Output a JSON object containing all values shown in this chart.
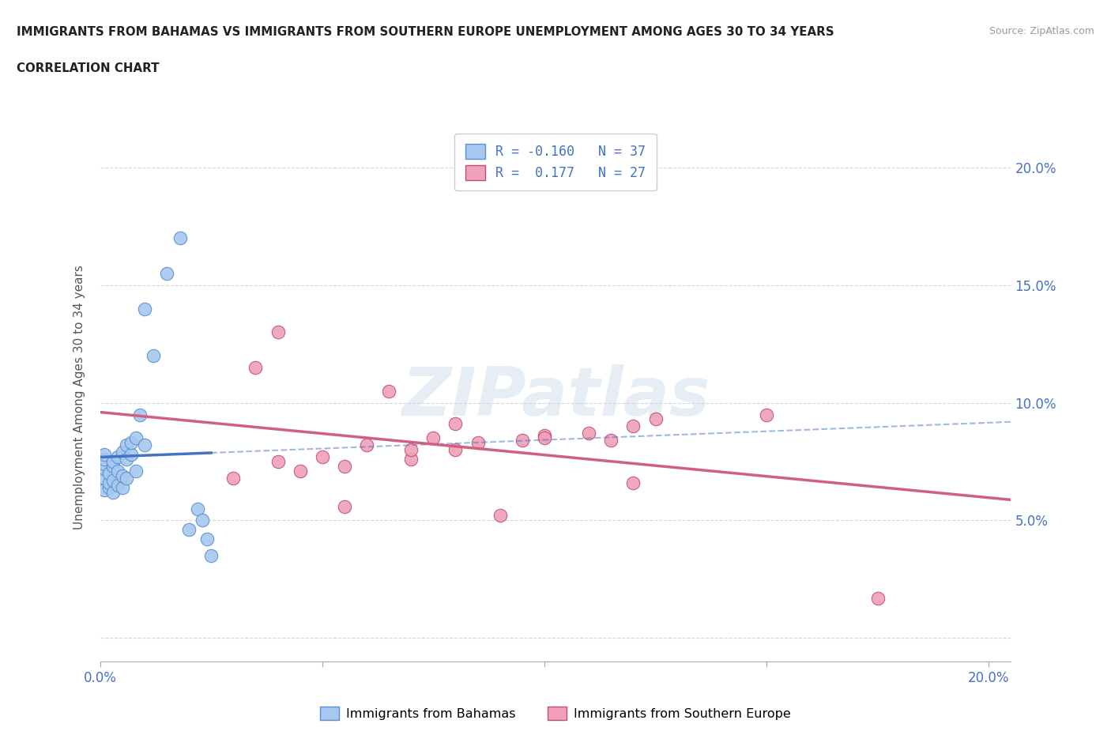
{
  "title_line1": "IMMIGRANTS FROM BAHAMAS VS IMMIGRANTS FROM SOUTHERN EUROPE UNEMPLOYMENT AMONG AGES 30 TO 34 YEARS",
  "title_line2": "CORRELATION CHART",
  "source_text": "Source: ZipAtlas.com",
  "ylabel": "Unemployment Among Ages 30 to 34 years",
  "xlim": [
    0.0,
    0.205
  ],
  "ylim": [
    -0.01,
    0.215
  ],
  "legend_r1": "R = -0.160   N = 37",
  "legend_r2": "R =  0.177   N = 27",
  "color_bahamas": "#a8c8f0",
  "color_bahamas_edge": "#5590d0",
  "color_s_europe": "#f0a0b8",
  "color_s_europe_edge": "#c05070",
  "color_bahamas_line": "#4472c4",
  "color_s_europe_line": "#d06080",
  "watermark": "ZIPatlas",
  "bahamas_x": [
    0.001,
    0.001,
    0.001,
    0.001,
    0.001,
    0.001,
    0.002,
    0.002,
    0.002,
    0.003,
    0.003,
    0.003,
    0.003,
    0.004,
    0.004,
    0.004,
    0.005,
    0.005,
    0.005,
    0.006,
    0.006,
    0.006,
    0.007,
    0.007,
    0.008,
    0.008,
    0.009,
    0.01,
    0.01,
    0.012,
    0.015,
    0.018,
    0.02,
    0.022,
    0.023,
    0.024,
    0.025
  ],
  "bahamas_y": [
    0.063,
    0.068,
    0.072,
    0.074,
    0.076,
    0.078,
    0.064,
    0.066,
    0.07,
    0.062,
    0.067,
    0.073,
    0.075,
    0.065,
    0.071,
    0.077,
    0.064,
    0.069,
    0.079,
    0.068,
    0.076,
    0.082,
    0.078,
    0.083,
    0.071,
    0.085,
    0.095,
    0.082,
    0.14,
    0.12,
    0.155,
    0.17,
    0.046,
    0.055,
    0.05,
    0.042,
    0.035
  ],
  "s_europe_x": [
    0.03,
    0.035,
    0.04,
    0.04,
    0.045,
    0.05,
    0.055,
    0.055,
    0.06,
    0.065,
    0.07,
    0.07,
    0.075,
    0.08,
    0.08,
    0.085,
    0.09,
    0.095,
    0.1,
    0.1,
    0.11,
    0.115,
    0.12,
    0.12,
    0.125,
    0.15,
    0.175
  ],
  "s_europe_y": [
    0.068,
    0.115,
    0.075,
    0.13,
    0.071,
    0.077,
    0.056,
    0.073,
    0.082,
    0.105,
    0.076,
    0.08,
    0.085,
    0.08,
    0.091,
    0.083,
    0.052,
    0.084,
    0.086,
    0.085,
    0.087,
    0.084,
    0.066,
    0.09,
    0.093,
    0.095,
    0.017
  ],
  "bahamas_trend": [
    -2.5,
    0.078
  ],
  "s_europe_trend": [
    0.12,
    0.069
  ]
}
